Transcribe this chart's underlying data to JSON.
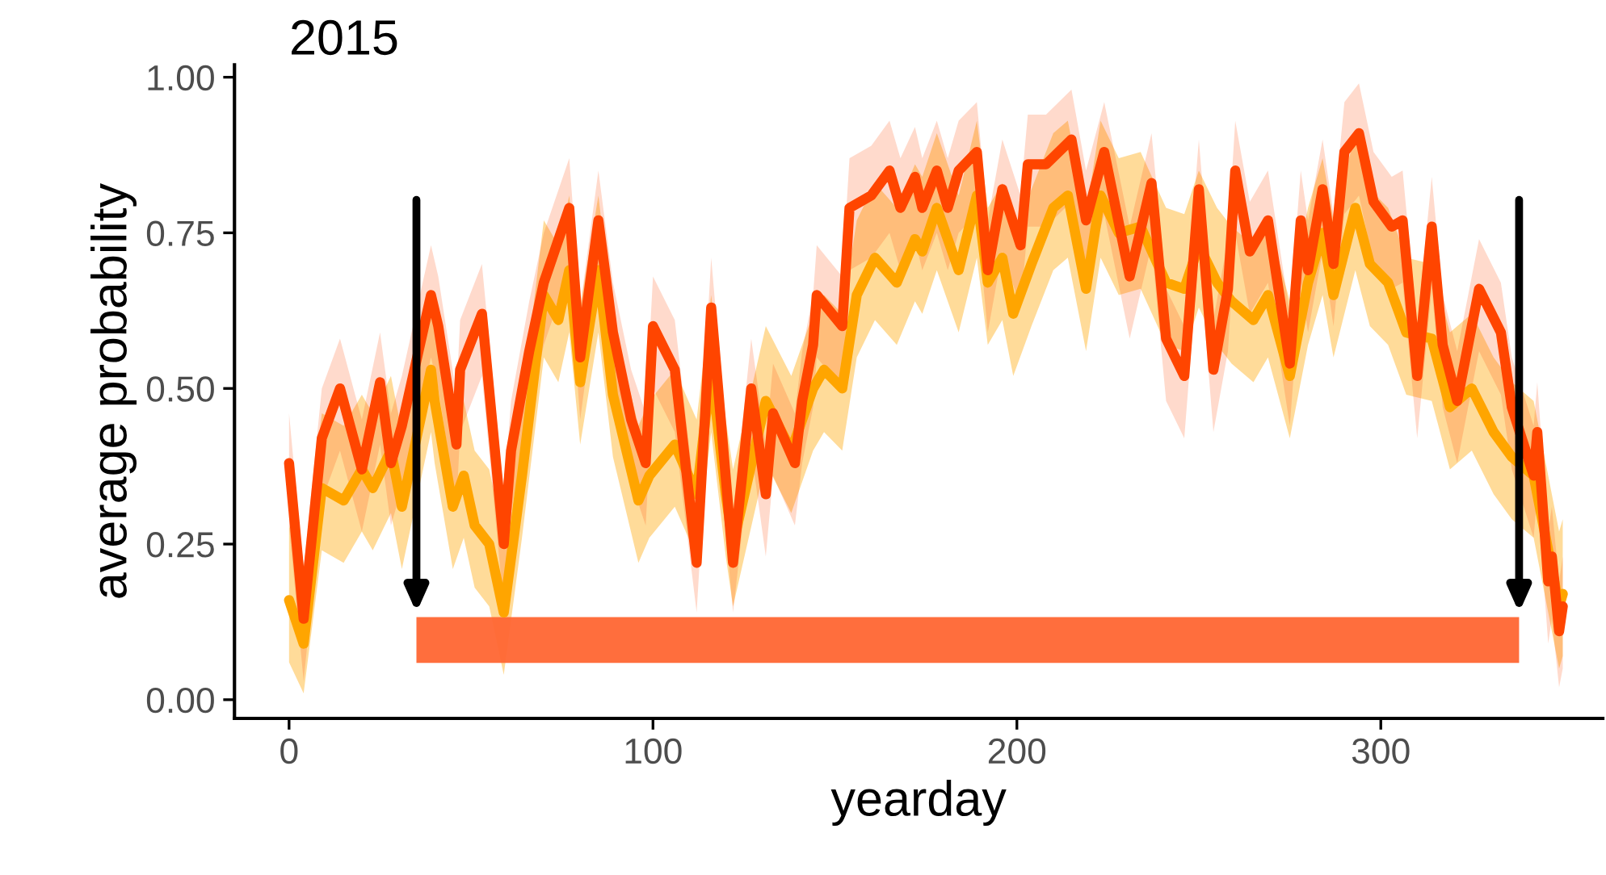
{
  "chart_data": {
    "type": "line",
    "title": "2015",
    "xlabel": "yearday",
    "ylabel": "average probability",
    "xlim": [
      -15,
      361
    ],
    "ylim": [
      -0.03,
      1.02
    ],
    "xticks": [
      0,
      100,
      200,
      300
    ],
    "yticks": [
      {
        "value": 0,
        "label": "0.00"
      },
      {
        "value": 0.25,
        "label": "0.25"
      },
      {
        "value": 0.5,
        "label": "0.50"
      },
      {
        "value": 0.75,
        "label": "0.75"
      },
      {
        "value": 1,
        "label": "1.00"
      }
    ],
    "grid": false,
    "legend": false,
    "line_style": "solid",
    "marker": "none",
    "bands": [
      {
        "axis": "x",
        "from": 35,
        "to": 338,
        "color": "#ff6633"
      }
    ],
    "series": [
      {
        "color": "#ffa500",
        "x": [
          0,
          4,
          9,
          15,
          20,
          23,
          28,
          31,
          39,
          40,
          45,
          48,
          51,
          55,
          59,
          64,
          70,
          74,
          77,
          80,
          85,
          89,
          96,
          99,
          106,
          112,
          116,
          120,
          122,
          131,
          138,
          144,
          147,
          152,
          156,
          161,
          167,
          172,
          174,
          178,
          184,
          189,
          192,
          196,
          199,
          204,
          210,
          214,
          219,
          223,
          228,
          234,
          241,
          246,
          250,
          255,
          259,
          265,
          269,
          275,
          280,
          284,
          287,
          293,
          297,
          302,
          307,
          314,
          319,
          325,
          331,
          336,
          342,
          346,
          349,
          350
        ],
        "values": [
          0.16,
          0.09,
          0.34,
          0.32,
          0.37,
          0.34,
          0.4,
          0.31,
          0.53,
          0.48,
          0.31,
          0.36,
          0.28,
          0.25,
          0.14,
          0.36,
          0.65,
          0.61,
          0.69,
          0.51,
          0.69,
          0.49,
          0.32,
          0.36,
          0.41,
          0.33,
          0.53,
          0.33,
          0.25,
          0.48,
          0.4,
          0.5,
          0.53,
          0.5,
          0.65,
          0.71,
          0.67,
          0.74,
          0.72,
          0.79,
          0.69,
          0.81,
          0.67,
          0.71,
          0.62,
          0.7,
          0.79,
          0.81,
          0.66,
          0.81,
          0.75,
          0.76,
          0.67,
          0.66,
          0.73,
          0.67,
          0.64,
          0.61,
          0.65,
          0.52,
          0.67,
          0.75,
          0.65,
          0.79,
          0.7,
          0.67,
          0.59,
          0.58,
          0.47,
          0.5,
          0.43,
          0.39,
          0.36,
          0.24,
          0.15,
          0.17
        ],
        "lower": [
          0.06,
          0.01,
          0.24,
          0.22,
          0.27,
          0.24,
          0.3,
          0.21,
          0.43,
          0.38,
          0.21,
          0.26,
          0.18,
          0.15,
          0.04,
          0.26,
          0.55,
          0.51,
          0.59,
          0.41,
          0.59,
          0.39,
          0.22,
          0.26,
          0.31,
          0.23,
          0.43,
          0.23,
          0.15,
          0.38,
          0.3,
          0.4,
          0.43,
          0.4,
          0.55,
          0.61,
          0.57,
          0.64,
          0.62,
          0.69,
          0.59,
          0.71,
          0.57,
          0.61,
          0.52,
          0.6,
          0.69,
          0.71,
          0.56,
          0.71,
          0.65,
          0.66,
          0.57,
          0.56,
          0.63,
          0.57,
          0.54,
          0.51,
          0.55,
          0.42,
          0.57,
          0.65,
          0.55,
          0.69,
          0.6,
          0.57,
          0.49,
          0.48,
          0.37,
          0.4,
          0.33,
          0.29,
          0.26,
          0.14,
          0.05,
          0.07
        ],
        "upper": [
          0.28,
          0.21,
          0.46,
          0.44,
          0.49,
          0.46,
          0.52,
          0.43,
          0.65,
          0.6,
          0.43,
          0.48,
          0.4,
          0.37,
          0.26,
          0.48,
          0.77,
          0.73,
          0.81,
          0.63,
          0.81,
          0.61,
          0.44,
          0.48,
          0.53,
          0.45,
          0.65,
          0.45,
          0.37,
          0.6,
          0.52,
          0.62,
          0.65,
          0.62,
          0.77,
          0.83,
          0.79,
          0.86,
          0.84,
          0.91,
          0.81,
          0.93,
          0.79,
          0.83,
          0.74,
          0.82,
          0.91,
          0.93,
          0.78,
          0.93,
          0.87,
          0.88,
          0.79,
          0.78,
          0.85,
          0.79,
          0.76,
          0.73,
          0.77,
          0.64,
          0.79,
          0.87,
          0.77,
          0.91,
          0.82,
          0.79,
          0.71,
          0.7,
          0.59,
          0.62,
          0.55,
          0.51,
          0.48,
          0.36,
          0.27,
          0.29
        ]
      },
      {
        "color": "#ff4500",
        "x": [
          0,
          4,
          9,
          14,
          20,
          25,
          28,
          31,
          39,
          41,
          46,
          47,
          53,
          59,
          61,
          66,
          70,
          77,
          80,
          85,
          89,
          94,
          98,
          100,
          106,
          112,
          116,
          122,
          127,
          131,
          133,
          139,
          141,
          144,
          145,
          152,
          154,
          160,
          165,
          168,
          172,
          174,
          178,
          181,
          184,
          189,
          192,
          196,
          201,
          203,
          208,
          215,
          219,
          224,
          231,
          237,
          241,
          246,
          250,
          254,
          258,
          260,
          264,
          269,
          275,
          278,
          280,
          284,
          287,
          290,
          294,
          298,
          303,
          306,
          310,
          314,
          317,
          321,
          327,
          333,
          336,
          342,
          343,
          346,
          347,
          349,
          350
        ],
        "values": [
          0.38,
          0.13,
          0.42,
          0.5,
          0.37,
          0.51,
          0.38,
          0.44,
          0.65,
          0.6,
          0.41,
          0.53,
          0.62,
          0.25,
          0.4,
          0.56,
          0.67,
          0.79,
          0.55,
          0.77,
          0.59,
          0.45,
          0.38,
          0.6,
          0.53,
          0.22,
          0.63,
          0.22,
          0.5,
          0.33,
          0.46,
          0.38,
          0.48,
          0.57,
          0.65,
          0.6,
          0.79,
          0.81,
          0.85,
          0.79,
          0.84,
          0.79,
          0.85,
          0.79,
          0.85,
          0.88,
          0.69,
          0.82,
          0.73,
          0.86,
          0.86,
          0.9,
          0.77,
          0.88,
          0.68,
          0.83,
          0.58,
          0.52,
          0.82,
          0.53,
          0.66,
          0.85,
          0.72,
          0.77,
          0.54,
          0.77,
          0.69,
          0.82,
          0.7,
          0.88,
          0.91,
          0.8,
          0.76,
          0.77,
          0.52,
          0.76,
          0.57,
          0.48,
          0.66,
          0.59,
          0.47,
          0.36,
          0.43,
          0.19,
          0.23,
          0.11,
          0.15
        ],
        "lower": [
          0.28,
          0.03,
          0.32,
          0.4,
          0.27,
          0.41,
          0.28,
          0.34,
          0.55,
          0.5,
          0.31,
          0.43,
          0.52,
          0.15,
          0.3,
          0.46,
          0.57,
          0.69,
          0.45,
          0.67,
          0.49,
          0.35,
          0.28,
          0.5,
          0.43,
          0.14,
          0.53,
          0.14,
          0.4,
          0.23,
          0.36,
          0.28,
          0.38,
          0.47,
          0.55,
          0.5,
          0.69,
          0.71,
          0.75,
          0.69,
          0.74,
          0.69,
          0.75,
          0.69,
          0.75,
          0.78,
          0.59,
          0.72,
          0.63,
          0.76,
          0.76,
          0.8,
          0.67,
          0.78,
          0.58,
          0.73,
          0.48,
          0.42,
          0.72,
          0.43,
          0.56,
          0.75,
          0.62,
          0.67,
          0.44,
          0.67,
          0.59,
          0.72,
          0.6,
          0.78,
          0.81,
          0.7,
          0.66,
          0.67,
          0.42,
          0.66,
          0.47,
          0.38,
          0.56,
          0.49,
          0.37,
          0.26,
          0.33,
          0.09,
          0.13,
          0.02,
          0.05
        ],
        "upper": [
          0.46,
          0.21,
          0.5,
          0.58,
          0.45,
          0.59,
          0.46,
          0.52,
          0.73,
          0.68,
          0.49,
          0.61,
          0.7,
          0.33,
          0.48,
          0.64,
          0.75,
          0.87,
          0.63,
          0.85,
          0.67,
          0.53,
          0.46,
          0.68,
          0.61,
          0.3,
          0.71,
          0.3,
          0.58,
          0.41,
          0.54,
          0.46,
          0.56,
          0.65,
          0.73,
          0.68,
          0.87,
          0.89,
          0.93,
          0.87,
          0.92,
          0.87,
          0.93,
          0.87,
          0.93,
          0.96,
          0.77,
          0.9,
          0.81,
          0.94,
          0.94,
          0.98,
          0.85,
          0.96,
          0.76,
          0.91,
          0.66,
          0.6,
          0.9,
          0.61,
          0.74,
          0.93,
          0.8,
          0.85,
          0.62,
          0.85,
          0.77,
          0.9,
          0.78,
          0.96,
          0.99,
          0.88,
          0.84,
          0.85,
          0.6,
          0.84,
          0.65,
          0.56,
          0.74,
          0.67,
          0.55,
          0.44,
          0.51,
          0.27,
          0.31,
          0.19,
          0.23
        ]
      }
    ]
  }
}
